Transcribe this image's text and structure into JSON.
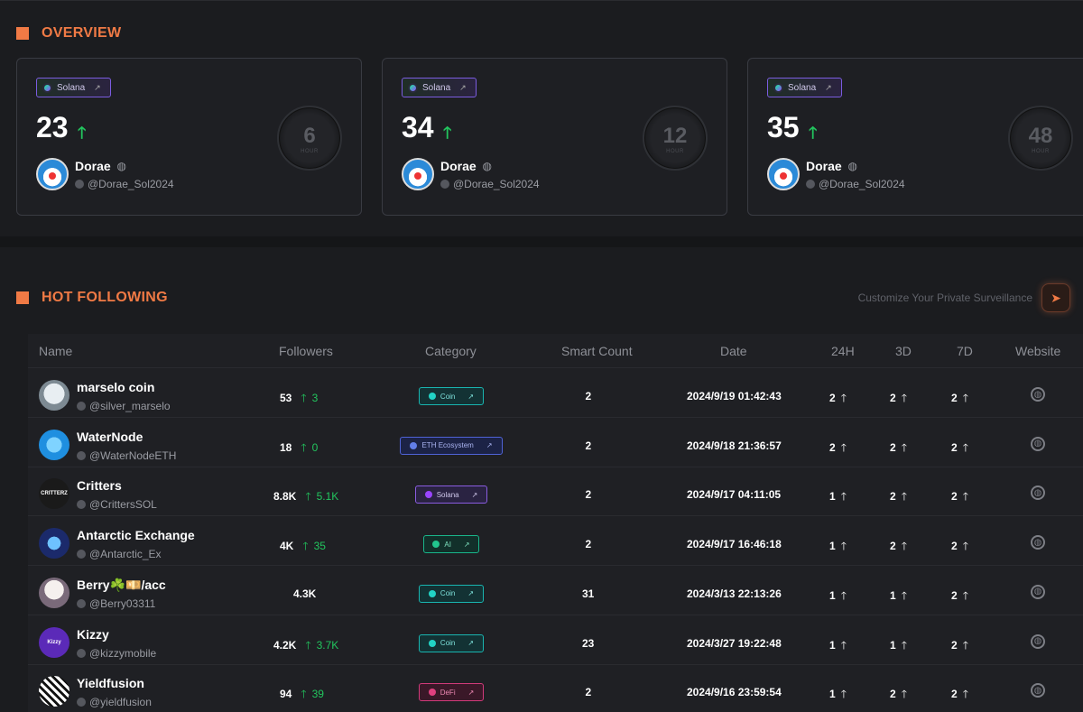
{
  "overview": {
    "title": "OVERVIEW",
    "cards": [
      {
        "chip": "Solana",
        "count": "23",
        "name": "Dorae",
        "handle": "@Dorae_Sol2024",
        "dial_value": "6",
        "dial_unit": "HOUR"
      },
      {
        "chip": "Solana",
        "count": "34",
        "name": "Dorae",
        "handle": "@Dorae_Sol2024",
        "dial_value": "12",
        "dial_unit": "HOUR"
      },
      {
        "chip": "Solana",
        "count": "35",
        "name": "Dorae",
        "handle": "@Dorae_Sol2024",
        "dial_value": "48",
        "dial_unit": "HOUR"
      }
    ]
  },
  "hot": {
    "title": "HOT FOLLOWING",
    "customize": "Customize Your Private Surveillance",
    "columns": [
      "Name",
      "Followers",
      "Category",
      "Smart Count",
      "Date",
      "24H",
      "3D",
      "7D",
      "Website"
    ],
    "rows": [
      {
        "name": "marselo coin",
        "handle": "@silver_marselo",
        "followers": "53",
        "delta": "3",
        "category": "Coin",
        "smart": "2",
        "date": "2024/9/19 01:42:43",
        "h24": "2",
        "d3": "2",
        "d7": "2"
      },
      {
        "name": "WaterNode",
        "handle": "@WaterNodeETH",
        "followers": "18",
        "delta": "0",
        "category": "ETH Ecosystem",
        "smart": "2",
        "date": "2024/9/18 21:36:57",
        "h24": "2",
        "d3": "2",
        "d7": "2"
      },
      {
        "name": "Critters",
        "handle": "@CrittersSOL",
        "followers": "8.8K",
        "delta": "5.1K",
        "category": "Solana",
        "smart": "2",
        "date": "2024/9/17 04:11:05",
        "h24": "1",
        "d3": "2",
        "d7": "2"
      },
      {
        "name": "Antarctic Exchange",
        "handle": "@Antarctic_Ex",
        "followers": "4K",
        "delta": "35",
        "category": "AI",
        "smart": "2",
        "date": "2024/9/17 16:46:18",
        "h24": "1",
        "d3": "2",
        "d7": "2"
      },
      {
        "name": "Berry☘️💴/acc",
        "handle": "@Berry03311",
        "followers": "4.3K",
        "delta": "",
        "category": "Coin",
        "smart": "31",
        "date": "2024/3/13 22:13:26",
        "h24": "1",
        "d3": "1",
        "d7": "2"
      },
      {
        "name": "Kizzy",
        "handle": "@kizzymobile",
        "followers": "4.2K",
        "delta": "3.7K",
        "category": "Coin",
        "smart": "23",
        "date": "2024/3/27 19:22:48",
        "h24": "1",
        "d3": "1",
        "d7": "2"
      },
      {
        "name": "Yieldfusion",
        "handle": "@yieldfusion",
        "followers": "94",
        "delta": "39",
        "category": "DeFi",
        "smart": "2",
        "date": "2024/9/16 23:59:54",
        "h24": "1",
        "d3": "2",
        "d7": "2"
      }
    ]
  },
  "icons": {
    "trend_up": "arrow-up-icon",
    "globe": "globe-icon",
    "send": "send-icon",
    "x_logo": "x-logo-icon"
  },
  "colors": {
    "accent": "#f07a45",
    "up": "#22c55e",
    "bg": "#1b1c1f",
    "card": "#1e1f23"
  }
}
